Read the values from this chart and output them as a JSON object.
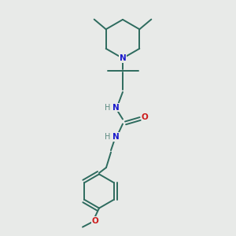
{
  "bg_color": "#e8eae8",
  "bond_color": "#2d6b5e",
  "N_color": "#1a1acc",
  "O_color": "#cc1a1a",
  "H_color": "#5a8a80",
  "bond_width": 1.4,
  "figsize": [
    3.0,
    3.0
  ],
  "dpi": 100,
  "xlim": [
    0,
    10
  ],
  "ylim": [
    0,
    10
  ]
}
